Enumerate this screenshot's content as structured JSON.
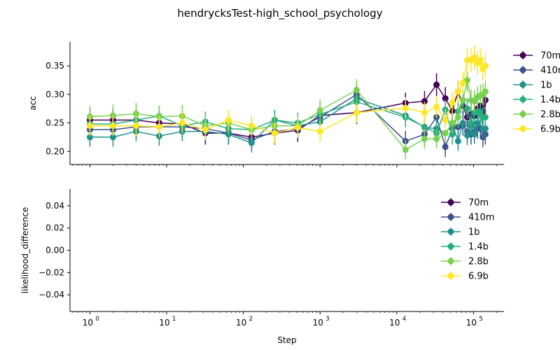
{
  "title": "hendrycksTest-high_school_psychology",
  "chart_data": [
    {
      "type": "line",
      "ylabel": "acc",
      "xlabel": "",
      "xscale": "log",
      "xlim": [
        0.55,
        250000
      ],
      "ylim": [
        0.177,
        0.392
      ],
      "yticks": [
        0.2,
        0.25,
        0.3,
        0.35
      ],
      "ytick_labels": [
        "0.20",
        "0.25",
        "0.30",
        "0.35"
      ],
      "legend_position": "right, outside",
      "error_bars": true,
      "series": [
        {
          "name": "70m",
          "color": "#440154",
          "x": [
            1,
            2,
            4,
            8,
            16,
            32,
            64,
            128,
            256,
            512,
            1000,
            3000,
            13000,
            23000,
            33000,
            43000,
            53000,
            63000,
            73000,
            83000,
            93000,
            103000,
            113000,
            123000,
            133000,
            143000
          ],
          "y": [
            0.255,
            0.255,
            0.255,
            0.25,
            0.248,
            0.232,
            0.232,
            0.225,
            0.232,
            0.237,
            0.263,
            0.268,
            0.285,
            0.288,
            0.317,
            0.293,
            0.271,
            0.305,
            0.28,
            0.26,
            0.265,
            0.262,
            0.275,
            0.28,
            0.27,
            0.29
          ],
          "err": [
            0.02,
            0.02,
            0.02,
            0.02,
            0.02,
            0.02,
            0.02,
            0.02,
            0.02,
            0.02,
            0.02,
            0.02,
            0.018,
            0.018,
            0.02,
            0.02,
            0.02,
            0.02,
            0.02,
            0.02,
            0.02,
            0.02,
            0.02,
            0.02,
            0.02,
            0.02
          ]
        },
        {
          "name": "410m",
          "color": "#3b528b",
          "x": [
            1,
            2,
            4,
            8,
            16,
            32,
            64,
            128,
            256,
            512,
            1000,
            3000,
            13000,
            23000,
            33000,
            43000,
            53000,
            63000,
            73000,
            83000,
            93000,
            103000,
            113000,
            123000,
            133000,
            143000
          ],
          "y": [
            0.238,
            0.238,
            0.243,
            0.243,
            0.243,
            0.24,
            0.232,
            0.22,
            0.235,
            0.24,
            0.26,
            0.3,
            0.218,
            0.23,
            0.26,
            0.208,
            0.24,
            0.243,
            0.245,
            0.235,
            0.23,
            0.235,
            0.24,
            0.24,
            0.225,
            0.23
          ],
          "err": [
            0.018,
            0.018,
            0.018,
            0.018,
            0.018,
            0.018,
            0.018,
            0.018,
            0.018,
            0.018,
            0.018,
            0.018,
            0.018,
            0.018,
            0.018,
            0.018,
            0.018,
            0.018,
            0.018,
            0.018,
            0.018,
            0.018,
            0.018,
            0.018,
            0.018,
            0.018
          ]
        },
        {
          "name": "1b",
          "color": "#21908d",
          "x": [
            1,
            2,
            4,
            8,
            16,
            32,
            64,
            128,
            256,
            512,
            1000,
            3000,
            13000,
            23000,
            33000,
            43000,
            53000,
            63000,
            73000,
            83000,
            93000,
            103000,
            113000,
            123000,
            133000,
            143000
          ],
          "y": [
            0.225,
            0.225,
            0.235,
            0.227,
            0.235,
            0.235,
            0.23,
            0.215,
            0.255,
            0.245,
            0.252,
            0.293,
            0.263,
            0.242,
            0.24,
            0.232,
            0.248,
            0.218,
            0.25,
            0.228,
            0.245,
            0.23,
            0.25,
            0.27,
            0.24,
            0.24
          ],
          "err": [
            0.017,
            0.017,
            0.017,
            0.017,
            0.017,
            0.017,
            0.017,
            0.017,
            0.017,
            0.017,
            0.017,
            0.017,
            0.017,
            0.017,
            0.017,
            0.017,
            0.017,
            0.017,
            0.017,
            0.017,
            0.017,
            0.017,
            0.017,
            0.017,
            0.017,
            0.017
          ]
        },
        {
          "name": "1.4b",
          "color": "#27ad81",
          "x": [
            1,
            2,
            4,
            8,
            16,
            32,
            64,
            128,
            256,
            512,
            1000,
            3000,
            13000,
            23000,
            33000,
            43000,
            53000,
            63000,
            73000,
            83000,
            93000,
            103000,
            113000,
            123000,
            133000,
            143000
          ],
          "y": [
            0.248,
            0.248,
            0.255,
            0.262,
            0.245,
            0.252,
            0.24,
            0.238,
            0.255,
            0.25,
            0.265,
            0.287,
            0.26,
            0.243,
            0.232,
            0.273,
            0.23,
            0.27,
            0.29,
            0.275,
            0.25,
            0.268,
            0.27,
            0.265,
            0.26,
            0.26
          ],
          "err": [
            0.018,
            0.018,
            0.018,
            0.018,
            0.018,
            0.018,
            0.018,
            0.018,
            0.018,
            0.018,
            0.018,
            0.018,
            0.018,
            0.018,
            0.018,
            0.018,
            0.018,
            0.018,
            0.018,
            0.018,
            0.018,
            0.018,
            0.018,
            0.018,
            0.018,
            0.018
          ]
        },
        {
          "name": "2.8b",
          "color": "#7ad151",
          "x": [
            1,
            2,
            4,
            8,
            16,
            32,
            64,
            128,
            256,
            512,
            1000,
            3000,
            13000,
            23000,
            33000,
            43000,
            53000,
            63000,
            73000,
            83000,
            93000,
            103000,
            113000,
            123000,
            133000,
            143000
          ],
          "y": [
            0.261,
            0.263,
            0.266,
            0.261,
            0.262,
            0.245,
            0.25,
            0.238,
            0.245,
            0.245,
            0.272,
            0.308,
            0.203,
            0.222,
            0.222,
            0.232,
            0.25,
            0.26,
            0.29,
            0.325,
            0.29,
            0.288,
            0.295,
            0.298,
            0.3,
            0.305
          ],
          "err": [
            0.019,
            0.019,
            0.019,
            0.019,
            0.019,
            0.019,
            0.019,
            0.019,
            0.019,
            0.019,
            0.019,
            0.019,
            0.017,
            0.017,
            0.017,
            0.017,
            0.018,
            0.018,
            0.019,
            0.02,
            0.019,
            0.019,
            0.019,
            0.019,
            0.019,
            0.019
          ]
        },
        {
          "name": "6.9b",
          "color": "#fde725",
          "x": [
            1,
            2,
            4,
            8,
            16,
            32,
            64,
            128,
            256,
            512,
            1000,
            3000,
            13000,
            23000,
            33000,
            43000,
            53000,
            63000,
            73000,
            83000,
            93000,
            103000,
            113000,
            123000,
            133000,
            143000
          ],
          "y": [
            0.245,
            0.245,
            0.245,
            0.243,
            0.25,
            0.238,
            0.255,
            0.245,
            0.232,
            0.242,
            0.235,
            0.268,
            0.276,
            0.268,
            0.278,
            0.255,
            0.285,
            0.305,
            0.32,
            0.36,
            0.36,
            0.365,
            0.355,
            0.36,
            0.345,
            0.35
          ],
          "err": [
            0.018,
            0.018,
            0.018,
            0.018,
            0.018,
            0.018,
            0.018,
            0.018,
            0.018,
            0.018,
            0.018,
            0.018,
            0.019,
            0.019,
            0.019,
            0.019,
            0.02,
            0.02,
            0.02,
            0.021,
            0.021,
            0.021,
            0.021,
            0.021,
            0.021,
            0.021
          ]
        }
      ]
    },
    {
      "type": "line",
      "ylabel": "likelihood_difference",
      "xlabel": "Step",
      "xscale": "log",
      "xlim": [
        0.55,
        250000
      ],
      "ylim": [
        -0.055,
        0.055
      ],
      "yticks": [
        -0.04,
        -0.02,
        0.0,
        0.02,
        0.04
      ],
      "ytick_labels": [
        "−0.04",
        "−0.02",
        "0.00",
        "0.02",
        "0.04"
      ],
      "xticks": [
        1,
        10,
        100,
        1000,
        10000,
        100000
      ],
      "xtick_labels": [
        "10",
        "10",
        "10",
        "10",
        "10",
        "10"
      ],
      "xtick_exponents": [
        "0",
        "1",
        "2",
        "3",
        "4",
        "5"
      ],
      "legend_position": "upper right",
      "series": [
        {
          "name": "70m",
          "color": "#440154",
          "x": [],
          "y": []
        },
        {
          "name": "410m",
          "color": "#3b528b",
          "x": [],
          "y": []
        },
        {
          "name": "1b",
          "color": "#21908d",
          "x": [],
          "y": []
        },
        {
          "name": "1.4b",
          "color": "#27ad81",
          "x": [],
          "y": []
        },
        {
          "name": "2.8b",
          "color": "#7ad151",
          "x": [],
          "y": []
        },
        {
          "name": "6.9b",
          "color": "#fde725",
          "x": [],
          "y": []
        }
      ]
    }
  ]
}
